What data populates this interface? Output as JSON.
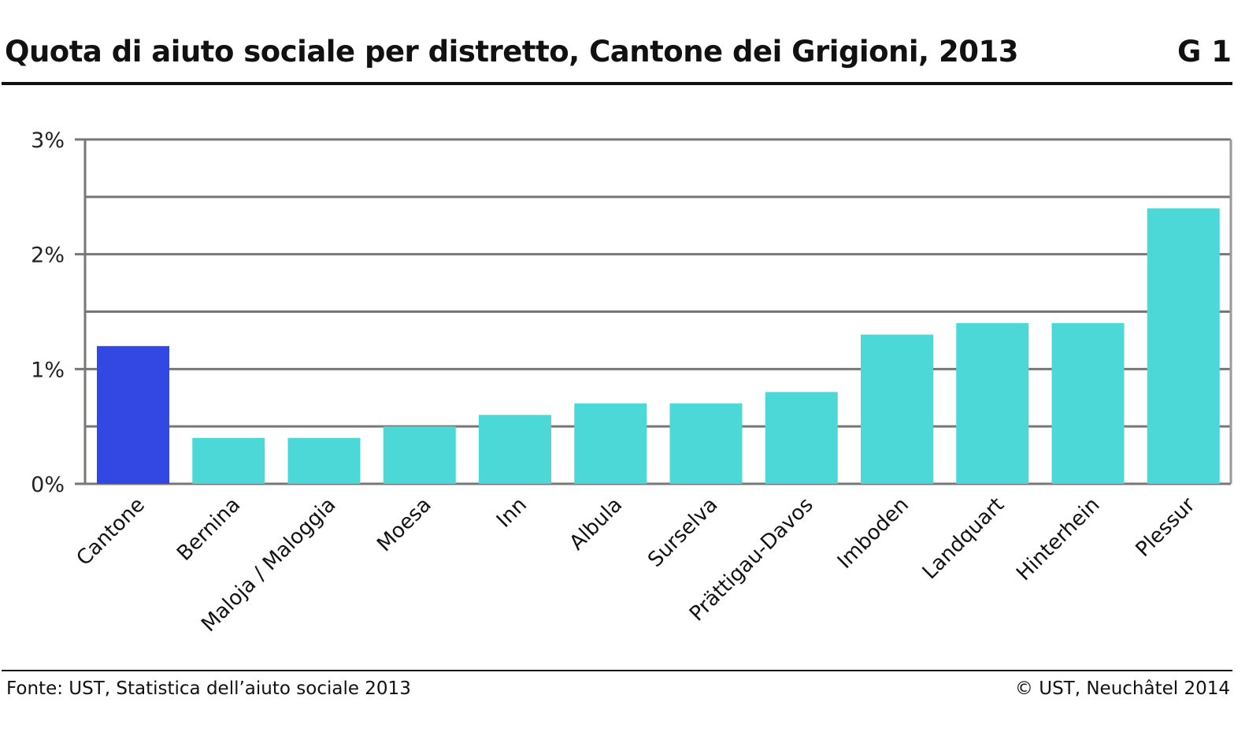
{
  "header": {
    "title": "Quota di aiuto sociale per distretto, Cantone dei Grigioni, 2013",
    "code": "G 1"
  },
  "footer": {
    "source": "Fonte: UST, Statistica dell’aiuto sociale 2013",
    "copyright": "© UST, Neuchâtel 2014"
  },
  "chart_data": {
    "type": "bar",
    "title": "Quota di aiuto sociale per distretto, Cantone dei Grigioni, 2013",
    "xlabel": "",
    "ylabel": "",
    "categories": [
      "Cantone",
      "Bernina",
      "Maloja / Maloggia",
      "Moesa",
      "Inn",
      "Albula",
      "Surselva",
      "Prättigau-Davos",
      "Imboden",
      "Landquart",
      "Hinterhein",
      "Plessur"
    ],
    "values": [
      1.2,
      0.4,
      0.4,
      0.5,
      0.6,
      0.7,
      0.7,
      0.8,
      1.3,
      1.4,
      1.4,
      2.4
    ],
    "unit": "%",
    "ylim": [
      0,
      3
    ],
    "yticks": [
      "0%",
      "1%",
      "2%",
      "3%"
    ],
    "grid": true,
    "colors": {
      "highlight": "#3348e3",
      "default": "#4dd8d8",
      "grid": "#777777"
    }
  }
}
